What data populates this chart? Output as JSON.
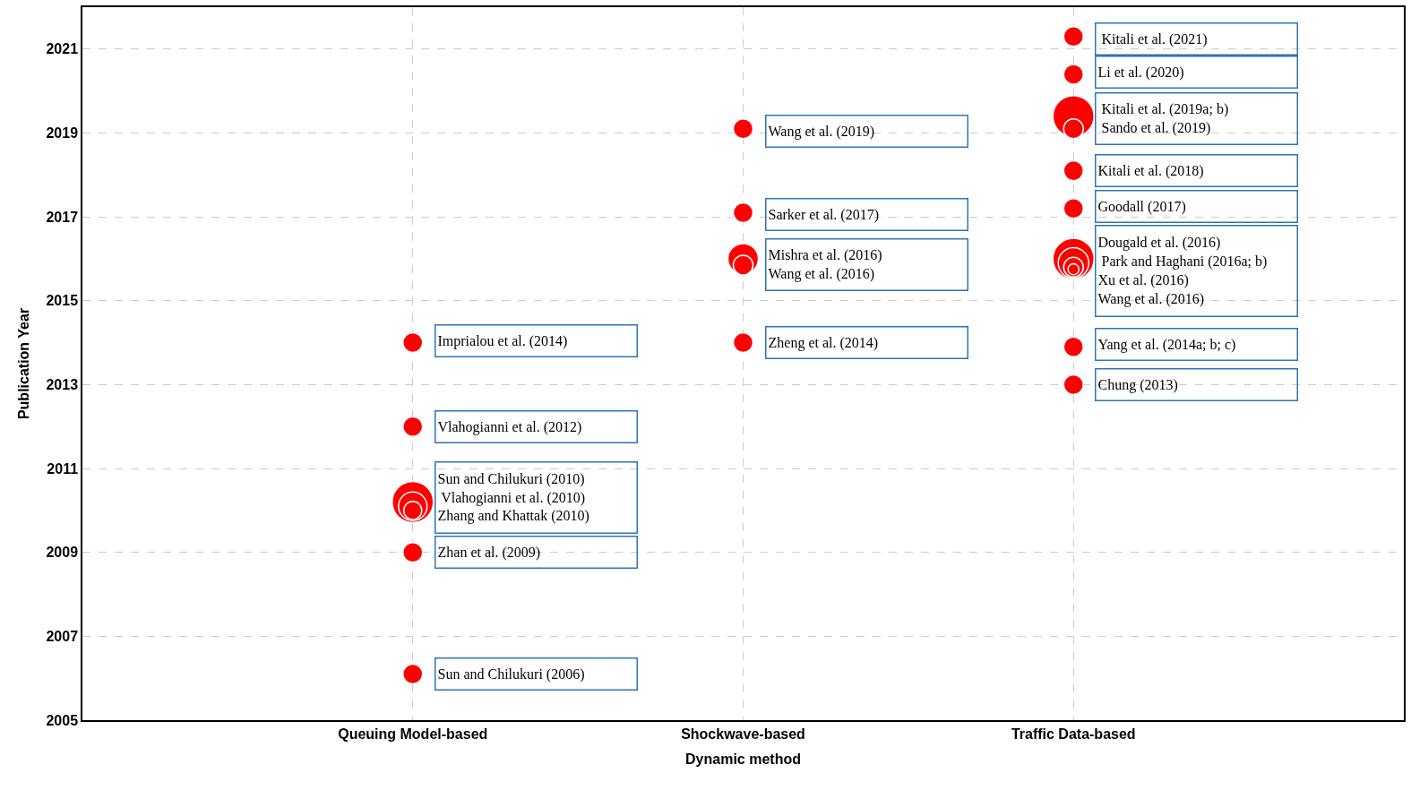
{
  "chart_data": {
    "type": "bubble",
    "xlabel": "Dynamic method",
    "ylabel": "Publication Year",
    "categories": [
      "Queuing Model-based",
      "Shockwave-based",
      "Traffic Data-based"
    ],
    "ylim": [
      2005,
      2022
    ],
    "yticks": [
      2005,
      2007,
      2009,
      2011,
      2013,
      2015,
      2017,
      2019,
      2021
    ],
    "grid": true,
    "series": [
      {
        "color": "#ff0000",
        "x": [
          "Queuing Model-based",
          "Queuing Model-based",
          "Queuing Model-based",
          "Queuing Model-based",
          "Queuing Model-based",
          "Queuing Model-based",
          "Queuing Model-based",
          "Shockwave-based",
          "Shockwave-based",
          "Shockwave-based",
          "Shockwave-based",
          "Shockwave-based",
          "Traffic Data-based",
          "Traffic Data-based",
          "Traffic Data-based",
          "Traffic Data-based",
          "Traffic Data-based",
          "Traffic Data-based",
          "Traffic Data-based",
          "Traffic Data-based",
          "Traffic Data-based",
          "Traffic Data-based",
          "Traffic Data-based",
          "Traffic Data-based"
        ],
        "values": [
          2006.1,
          2009.0,
          2010.2,
          2010.1,
          2010.0,
          2012.0,
          2014.0,
          2014.0,
          2016.0,
          2015.85,
          2017.1,
          2019.1,
          2013.0,
          2013.9,
          2016.0,
          2015.9,
          2015.8,
          2015.75,
          2017.2,
          2018.1,
          2019.4,
          2019.1,
          2020.4,
          2021.3
        ],
        "sizes": [
          0.23,
          0.23,
          1,
          0.48,
          0.19,
          0.23,
          0.23,
          0.23,
          0.55,
          0.23,
          0.23,
          0.23,
          0.23,
          0.23,
          1,
          0.55,
          0.23,
          0.07,
          0.23,
          0.23,
          1,
          0.23,
          0.23,
          0.23
        ]
      }
    ],
    "annotations": [
      {
        "text": "Sun and Chilukuri (2006)",
        "x": "Queuing Model-based",
        "y": 2006.1
      },
      {
        "text": "Zhan et al. (2009)",
        "x": "Queuing Model-based",
        "y": 2009.0
      },
      {
        "text": "Sun and Chilukuri (2010)\n Vlahogianni et al. (2010)\nZhang and Khattak (2010)",
        "x": "Queuing Model-based",
        "y": 2010.3
      },
      {
        "text": "Vlahogianni et al. (2012)",
        "x": "Queuing Model-based",
        "y": 2012.0
      },
      {
        "text": "Imprialou et al. (2014)",
        "x": "Queuing Model-based",
        "y": 2014.05
      },
      {
        "text": "Zheng et al. (2014)",
        "x": "Shockwave-based",
        "y": 2014.0
      },
      {
        "text": "Mishra et al. (2016)\nWang et al. (2016)",
        "x": "Shockwave-based",
        "y": 2015.85
      },
      {
        "text": "Sarker et al. (2017)",
        "x": "Shockwave-based",
        "y": 2017.05
      },
      {
        "text": "Wang et al. (2019)",
        "x": "Shockwave-based",
        "y": 2019.05
      },
      {
        "text": "Chung (2013)",
        "x": "Traffic Data-based",
        "y": 2013.0
      },
      {
        "text": "Yang et al. (2014a; b; c)",
        "x": "Traffic Data-based",
        "y": 2013.95
      },
      {
        "text": "Dougald et al. (2016)\n Park and Haghani (2016a; b)\nXu et al. (2016)\nWang et al. (2016)",
        "x": "Traffic Data-based",
        "y": 2015.7
      },
      {
        "text": "Goodall (2017)",
        "x": "Traffic Data-based",
        "y": 2017.25
      },
      {
        "text": "Kitali et al. (2018)",
        "x": "Traffic Data-based",
        "y": 2018.1
      },
      {
        "text": " Kitali et al. (2019a; b)\n Sando et al. (2019)",
        "x": "Traffic Data-based",
        "y": 2019.35
      },
      {
        "text": "Li et al. (2020)",
        "x": "Traffic Data-based",
        "y": 2020.45
      },
      {
        "text": " Kitali et al. (2021)",
        "x": "Traffic Data-based",
        "y": 2021.25
      }
    ]
  }
}
